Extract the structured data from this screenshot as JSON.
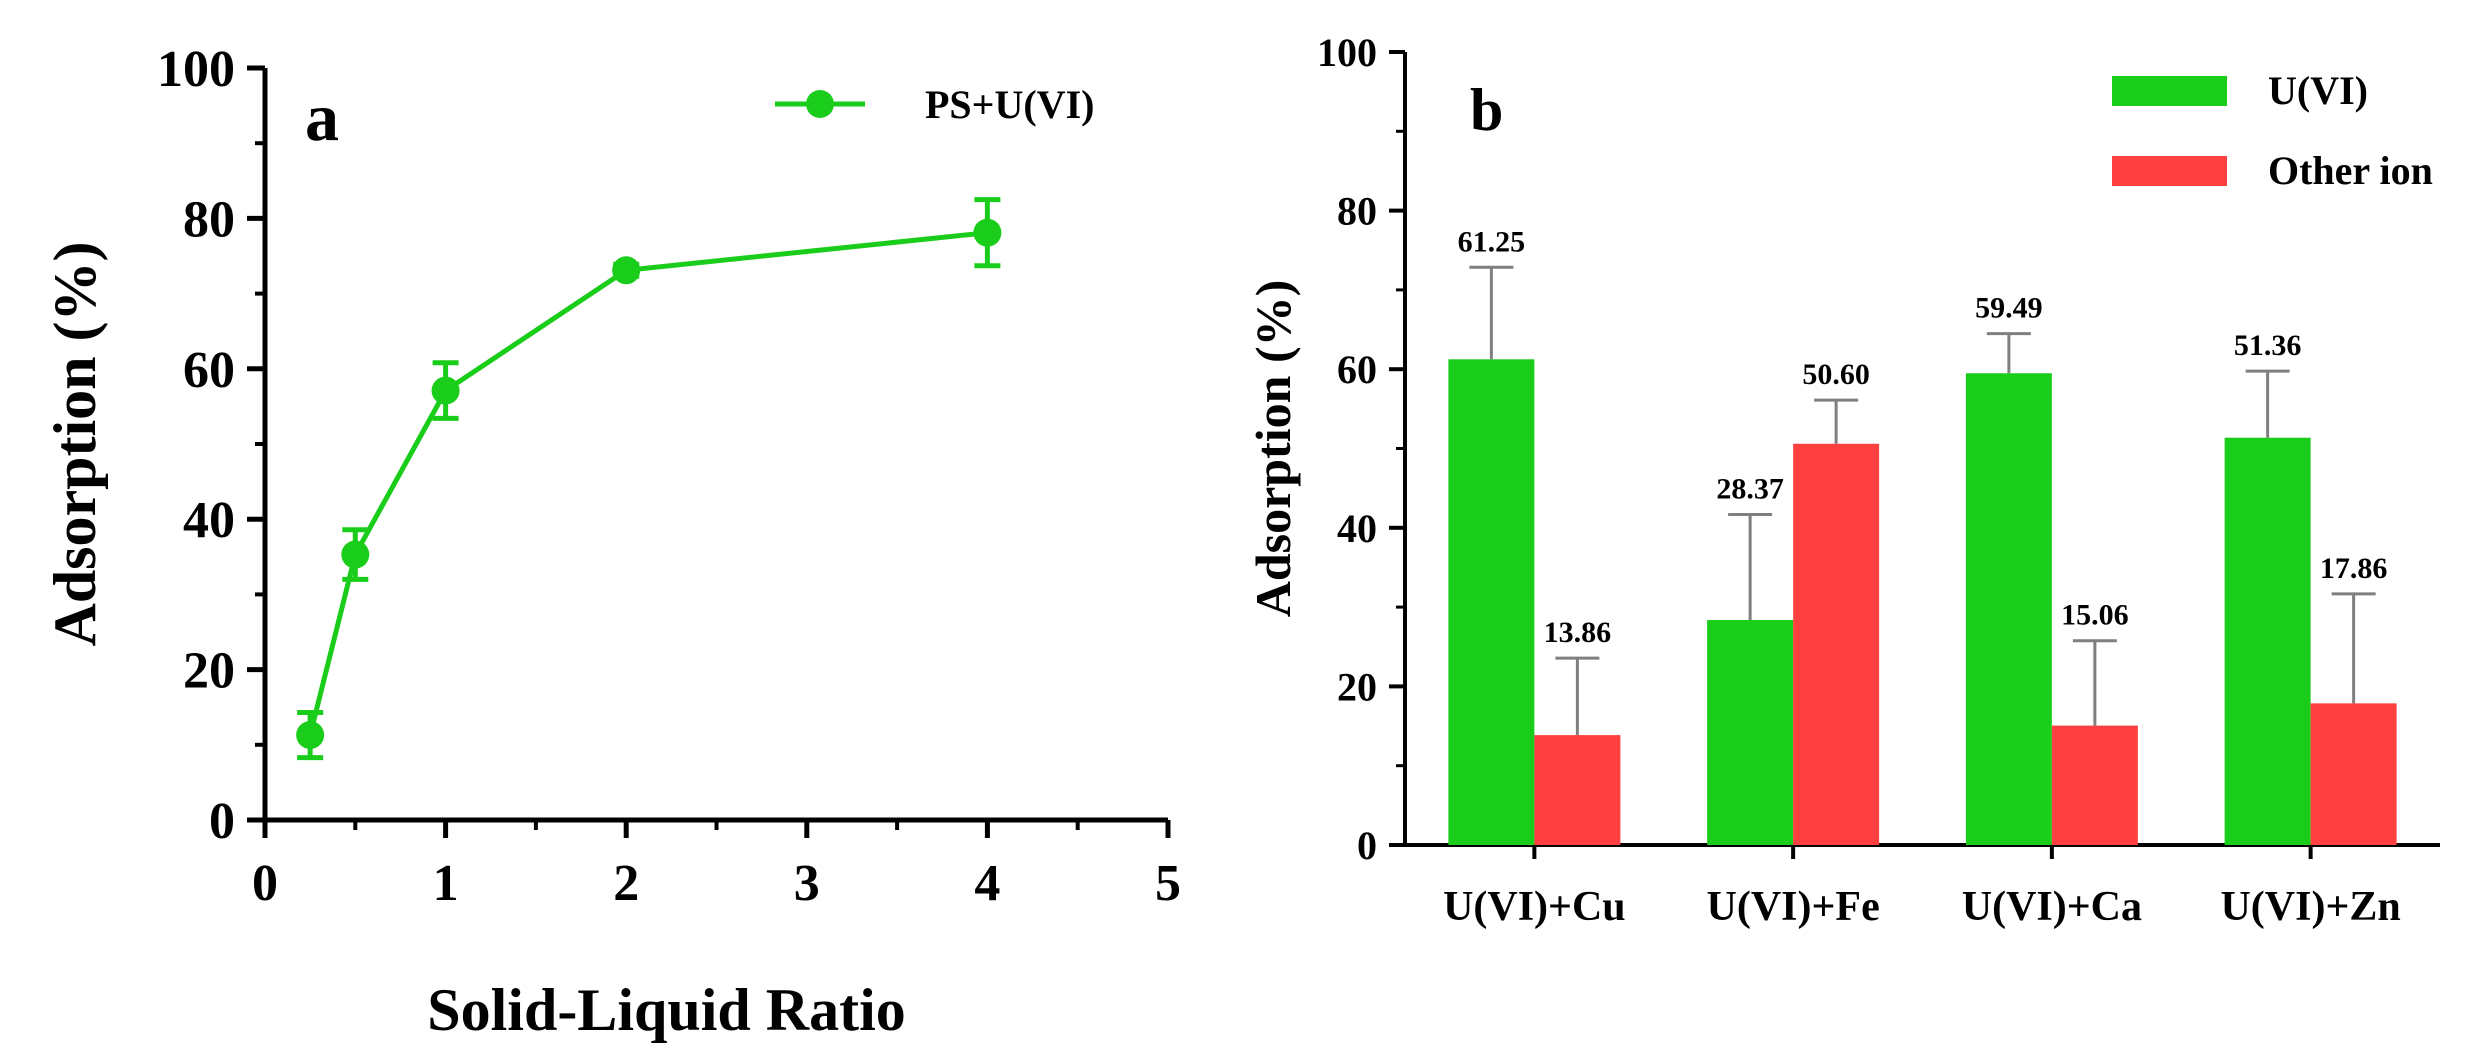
{
  "colors": {
    "green": "#1ACD1A",
    "red": "#FF4040",
    "axis": "#000000",
    "errorbar_bar": "#7F7F7F"
  },
  "chart_data": [
    {
      "panel": "a",
      "type": "line",
      "title": "",
      "xlabel": "Solid-Liquid Ratio",
      "ylabel": "Adsorption (%)",
      "xlim": [
        0,
        5
      ],
      "ylim": [
        0,
        100
      ],
      "x_ticks": [
        "0",
        "1",
        "2",
        "3",
        "4",
        "5"
      ],
      "y_ticks": [
        "0",
        "20",
        "40",
        "60",
        "80",
        "100"
      ],
      "legend": {
        "position": "top-right",
        "entries": [
          "PS+U(VI)"
        ]
      },
      "series": [
        {
          "name": "PS+U(VI)",
          "x": [
            0.25,
            0.5,
            1,
            2,
            4
          ],
          "y": [
            11.3,
            35.3,
            57.1,
            73.1,
            78.1
          ],
          "error": [
            3.0,
            3.3,
            3.7,
            0.8,
            4.4
          ]
        }
      ]
    },
    {
      "panel": "b",
      "type": "bar",
      "title": "",
      "xlabel": "",
      "ylabel": "Adsorption (%)",
      "ylim": [
        0,
        100
      ],
      "y_ticks": [
        "0",
        "20",
        "40",
        "60",
        "80",
        "100"
      ],
      "categories": [
        "U(VI)+Cu",
        "U(VI)+Fe",
        "U(VI)+Ca",
        "U(VI)+Zn"
      ],
      "legend": {
        "position": "top-right",
        "entries": [
          "U(VI)",
          "Other ion"
        ]
      },
      "series": [
        {
          "name": "U(VI)",
          "values": [
            61.25,
            28.37,
            59.49,
            51.36
          ],
          "labels": [
            "61.25",
            "28.37",
            "59.49",
            "51.36"
          ],
          "error": [
            11.6,
            13.3,
            5.0,
            8.4
          ]
        },
        {
          "name": "Other ion",
          "values": [
            13.86,
            50.6,
            15.06,
            17.86
          ],
          "labels": [
            "13.86",
            "50.60",
            "15.06",
            "17.86"
          ],
          "error": [
            9.7,
            5.5,
            10.7,
            13.8
          ]
        }
      ]
    }
  ]
}
